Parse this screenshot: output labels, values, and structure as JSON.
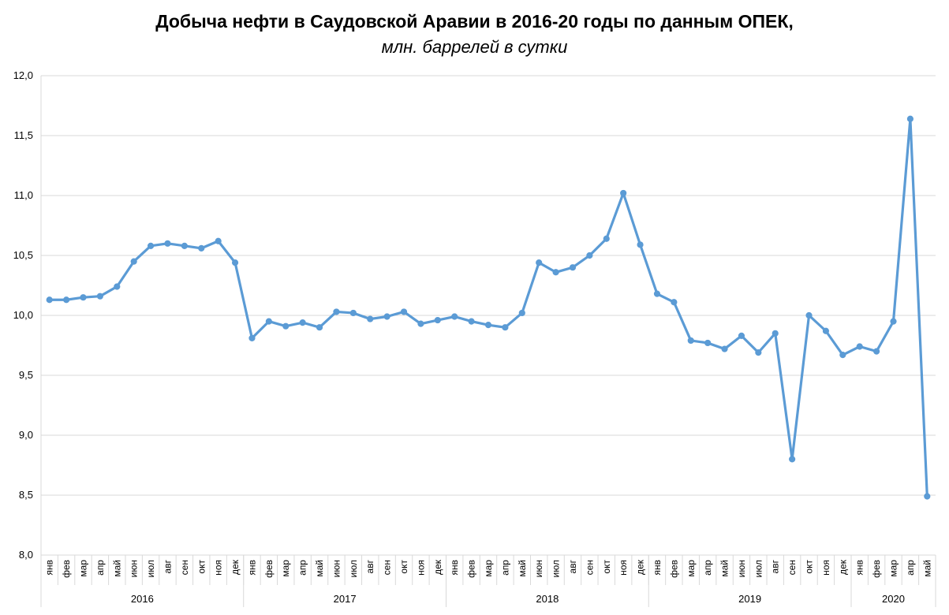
{
  "chart_data": {
    "type": "line",
    "title": "Добыча нефти в Саудовской Аравии в 2016-20 годы по данным ОПЕК,",
    "subtitle": "млн. баррелей в сутки",
    "ylim": [
      8.0,
      12.0
    ],
    "yticks": [
      "8,0",
      "8,5",
      "9,0",
      "9,5",
      "10,0",
      "10,5",
      "11,0",
      "11,5",
      "12,0"
    ],
    "grid": true,
    "color": "#5b9bd5",
    "years": [
      {
        "label": "2016",
        "months": 12
      },
      {
        "label": "2017",
        "months": 12
      },
      {
        "label": "2018",
        "months": 12
      },
      {
        "label": "2019",
        "months": 12
      },
      {
        "label": "2020",
        "months": 5
      }
    ],
    "categories": [
      "янв",
      "фев",
      "мар",
      "апр",
      "май",
      "июн",
      "июл",
      "авг",
      "сен",
      "окт",
      "ноя",
      "дек",
      "янв",
      "фев",
      "мар",
      "апр",
      "май",
      "июн",
      "июл",
      "авг",
      "сен",
      "окт",
      "ноя",
      "дек",
      "янв",
      "фев",
      "мар",
      "апр",
      "май",
      "июн",
      "июл",
      "авг",
      "сен",
      "окт",
      "ноя",
      "дек",
      "янв",
      "фев",
      "мар",
      "апр",
      "май",
      "июн",
      "июл",
      "авг",
      "сен",
      "окт",
      "ноя",
      "дек",
      "янв",
      "фев",
      "мар",
      "апр",
      "май"
    ],
    "values": [
      10.13,
      10.13,
      10.15,
      10.16,
      10.24,
      10.45,
      10.58,
      10.6,
      10.58,
      10.56,
      10.62,
      10.44,
      9.81,
      9.95,
      9.91,
      9.94,
      9.9,
      10.03,
      10.02,
      9.97,
      9.99,
      10.03,
      9.93,
      9.96,
      9.99,
      9.95,
      9.92,
      9.9,
      10.02,
      10.44,
      10.36,
      10.4,
      10.5,
      10.64,
      11.02,
      10.59,
      10.18,
      10.11,
      9.79,
      9.77,
      9.72,
      9.83,
      9.69,
      9.85,
      8.8,
      10.0,
      9.87,
      9.67,
      9.74,
      9.7,
      9.95,
      11.64,
      8.49
    ]
  }
}
